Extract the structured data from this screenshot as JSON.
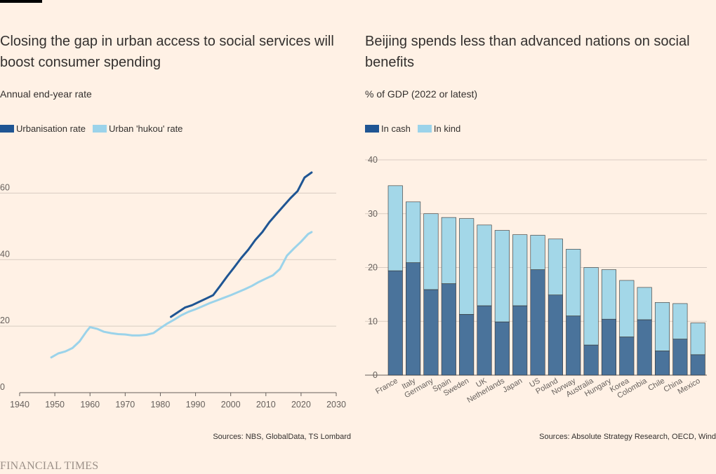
{
  "brand": "FINANCIAL TIMES",
  "colors": {
    "dark": "#1f5593",
    "light": "#9bd3ea",
    "bar_dark": "#4a739b",
    "bar_light": "#a3d7e8",
    "grid": "#d8ccc2",
    "axis": "#66605c"
  },
  "left": {
    "title": "Closing the gap in urban access to social services will boost consumer spending",
    "subtitle": "Annual end-year rate",
    "legend": [
      "Urbanisation rate",
      "Urban 'hukou' rate"
    ],
    "source": "Sources: NBS, GlobalData, TS Lombard"
  },
  "right": {
    "title": "Beijing spends less than advanced nations on social benefits",
    "subtitle": "% of GDP (2022 or latest)",
    "legend": [
      "In cash",
      "In kind"
    ],
    "source": "Sources: Absolute Strategy Research, OECD, Wind"
  },
  "chart_data": [
    {
      "type": "line",
      "title": "Closing the gap in urban access to social services will boost consumer spending",
      "subtitle": "Annual end-year rate",
      "xlim": [
        1940,
        2030
      ],
      "ylim": [
        0,
        70
      ],
      "xticks": [
        1940,
        1950,
        1960,
        1970,
        1980,
        1990,
        2000,
        2010,
        2020,
        2030
      ],
      "yticks": [
        0,
        20,
        40,
        60
      ],
      "grid": true,
      "legend_position": "top-left",
      "series": [
        {
          "name": "Urbanisation rate",
          "color": "#1f5593",
          "x": [
            1983,
            1985,
            1987,
            1989,
            1991,
            1993,
            1995,
            1997,
            1999,
            2001,
            2003,
            2005,
            2007,
            2009,
            2011,
            2013,
            2015,
            2017,
            2019,
            2021,
            2023
          ],
          "y": [
            22.8,
            24.2,
            25.6,
            26.3,
            27.3,
            28.3,
            29.3,
            32.1,
            35.0,
            37.7,
            40.5,
            43.0,
            45.9,
            48.3,
            51.3,
            53.7,
            56.1,
            58.5,
            60.6,
            64.7,
            66.2
          ]
        },
        {
          "name": "Urban 'hukou' rate",
          "color": "#9bd3ea",
          "x": [
            1949,
            1951,
            1953,
            1955,
            1957,
            1959,
            1960,
            1962,
            1964,
            1966,
            1968,
            1970,
            1972,
            1974,
            1976,
            1978,
            1980,
            1982,
            1984,
            1986,
            1988,
            1990,
            1992,
            1994,
            1996,
            1998,
            2000,
            2002,
            2004,
            2006,
            2008,
            2010,
            2012,
            2014,
            2016,
            2018,
            2020,
            2022,
            2023
          ],
          "y": [
            10.6,
            11.8,
            12.4,
            13.4,
            15.4,
            18.4,
            19.7,
            19.2,
            18.3,
            17.9,
            17.6,
            17.5,
            17.2,
            17.2,
            17.4,
            17.9,
            19.4,
            20.8,
            22.0,
            23.3,
            24.3,
            25.1,
            26.0,
            26.9,
            27.7,
            28.5,
            29.3,
            30.2,
            31.1,
            32.1,
            33.3,
            34.3,
            35.3,
            37.2,
            41.2,
            43.4,
            45.4,
            47.7,
            48.3
          ]
        }
      ]
    },
    {
      "type": "bar",
      "stacked": true,
      "title": "Beijing spends less than advanced nations on social benefits",
      "subtitle": "% of GDP (2022 or latest)",
      "ylim": [
        0,
        40
      ],
      "yticks": [
        0,
        10,
        20,
        30,
        40
      ],
      "grid": true,
      "legend_position": "top-left",
      "categories": [
        "France",
        "Italy",
        "Germany",
        "Spain",
        "Sweden",
        "UK",
        "Netherlands",
        "Japan",
        "US",
        "Poland",
        "Norway",
        "Australia",
        "Hungary",
        "Korea",
        "Colombia",
        "Chile",
        "China",
        "Mexico"
      ],
      "series": [
        {
          "name": "In cash",
          "color": "#4a739b",
          "values": [
            19.4,
            20.9,
            15.9,
            17.0,
            11.3,
            12.9,
            9.9,
            12.9,
            19.6,
            14.9,
            11.0,
            5.6,
            10.4,
            7.1,
            10.3,
            4.5,
            6.7,
            3.8
          ]
        },
        {
          "name": "In kind",
          "color": "#a3d7e8",
          "values": [
            15.8,
            11.3,
            14.1,
            12.3,
            17.8,
            15.0,
            17.0,
            13.2,
            6.4,
            10.4,
            12.4,
            14.4,
            9.2,
            10.5,
            6.0,
            9.0,
            6.6,
            5.9
          ]
        }
      ]
    }
  ]
}
